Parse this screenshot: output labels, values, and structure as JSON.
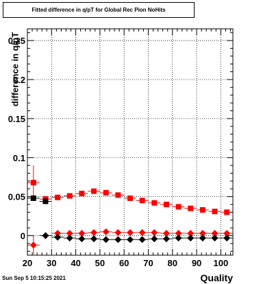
{
  "title": "Fitted difference in q/pT for Global Rec Pion NoHits",
  "xlabel": "Quality",
  "ylabel": "difference in q/pT",
  "timestamp": "Sun Sep  5 10:15:25 2021",
  "chart_data": {
    "type": "scatter",
    "title": "Fitted difference in q/pT for Global Rec Pion NoHits",
    "xlabel": "Quality",
    "ylabel": "difference in q/pT",
    "xlim": [
      20,
      105
    ],
    "ylim": [
      -0.025,
      0.265
    ],
    "grid": true,
    "x_ticks": [
      "20",
      "30",
      "40",
      "50",
      "60",
      "70",
      "80",
      "90",
      "100"
    ],
    "y_ticks": [
      "0",
      "0.05",
      "0.1",
      "0.15",
      "0.2",
      "0.25"
    ],
    "x_tick_values": [
      20,
      30,
      40,
      50,
      60,
      70,
      80,
      90,
      100
    ],
    "y_tick_values": [
      0,
      0.05,
      0.1,
      0.15,
      0.2,
      0.25
    ],
    "series": [
      {
        "marker": "square",
        "color": "#ff0000",
        "x": [
          22.5,
          27.5,
          32.5,
          37.5,
          42.5,
          47.5,
          52.5,
          57.5,
          62.5,
          67.5,
          72.5,
          77.5,
          82.5,
          87.5,
          92.5,
          97.5,
          102.5
        ],
        "y": [
          0.068,
          0.047,
          0.049,
          0.051,
          0.054,
          0.057,
          0.055,
          0.052,
          0.048,
          0.045,
          0.042,
          0.04,
          0.037,
          0.035,
          0.033,
          0.031,
          0.03
        ],
        "yerr": [
          0.022,
          0.004,
          0.003,
          0.002,
          0.002,
          0.002,
          0.002,
          0.002,
          0.002,
          0.002,
          0.002,
          0.002,
          0.002,
          0.002,
          0.002,
          0.002,
          0.002
        ]
      },
      {
        "marker": "square",
        "color": "#000000",
        "x": [
          22.5,
          27.5
        ],
        "y": [
          0.048,
          0.044
        ],
        "yerr": [
          0.0,
          0.0
        ]
      },
      {
        "marker": "diamond",
        "color": "#ff0000",
        "x": [
          22.5,
          27.5,
          32.5,
          37.5,
          42.5,
          47.5,
          52.5,
          57.5,
          62.5,
          67.5,
          72.5,
          77.5,
          82.5,
          87.5,
          92.5,
          97.5,
          102.5
        ],
        "y": [
          -0.012,
          0.0,
          0.003,
          0.003,
          0.003,
          0.004,
          0.005,
          0.004,
          0.004,
          0.004,
          0.004,
          0.003,
          0.003,
          0.003,
          0.003,
          0.003,
          0.003
        ],
        "yerr": [
          0.012,
          0.002,
          0.001,
          0.001,
          0.001,
          0.001,
          0.001,
          0.001,
          0.001,
          0.001,
          0.001,
          0.001,
          0.001,
          0.001,
          0.001,
          0.001,
          0.001
        ]
      },
      {
        "marker": "diamond",
        "color": "#000000",
        "x": [
          27.5,
          32.5,
          37.5,
          42.5,
          47.5,
          52.5,
          57.5,
          62.5,
          67.5,
          72.5,
          77.5,
          82.5,
          87.5,
          92.5,
          97.5,
          102.5
        ],
        "y": [
          0.0,
          -0.002,
          -0.003,
          -0.004,
          -0.004,
          -0.005,
          -0.005,
          -0.005,
          -0.005,
          -0.004,
          -0.004,
          -0.003,
          -0.003,
          -0.003,
          -0.003,
          -0.003
        ],
        "yerr": [
          0.001,
          0.001,
          0.001,
          0.001,
          0.001,
          0.001,
          0.001,
          0.001,
          0.001,
          0.001,
          0.001,
          0.001,
          0.001,
          0.001,
          0.001,
          0.001
        ]
      }
    ]
  }
}
